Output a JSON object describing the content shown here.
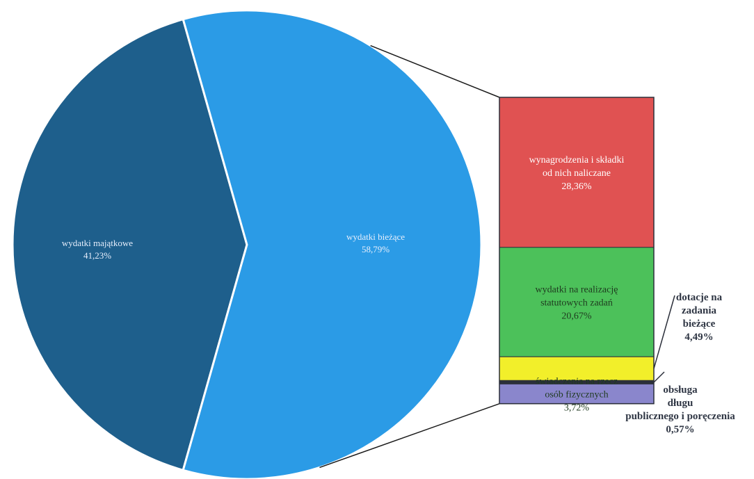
{
  "chart_data": {
    "type": "pie",
    "pie": {
      "slices": [
        {
          "label": "wydatki majątkowe",
          "value_label": "41,23%",
          "value": 41.23,
          "color": "#1e5f8c"
        },
        {
          "label": "wydatki bieżące",
          "value_label": "58,79%",
          "value": 58.79,
          "color": "#2b9be6"
        }
      ]
    },
    "breakdown": {
      "of": "wydatki bieżące",
      "segments": [
        {
          "label_lines": [
            "wynagrodzenia i składki",
            "od nich naliczane"
          ],
          "value_label": "28,36%",
          "value": 28.36,
          "color": "#e05252"
        },
        {
          "label_lines": [
            "wydatki na realizację",
            "statutowych zadań"
          ],
          "value_label": "20,67%",
          "value": 20.67,
          "color": "#4cc15a"
        },
        {
          "label_lines": [],
          "value_label": "",
          "value": 4.49,
          "color": "#f2ef2a"
        },
        {
          "label_lines": [],
          "value_label": "",
          "value": 0.57,
          "color": "#2b2f3a"
        },
        {
          "label_lines": [
            "świadczenia na rzecz",
            "osób fizycznych"
          ],
          "value_label": "3,72%",
          "value": 3.72,
          "color": "#8a86cc"
        }
      ]
    },
    "callouts": [
      {
        "lines": [
          "dotacje na",
          "zadania",
          "bieżące",
          "4,49%"
        ],
        "segment": 2
      },
      {
        "lines": [
          "obsługa",
          "długu",
          "publicznego i poręczenia",
          "0,57%"
        ],
        "segment": 3
      }
    ]
  }
}
